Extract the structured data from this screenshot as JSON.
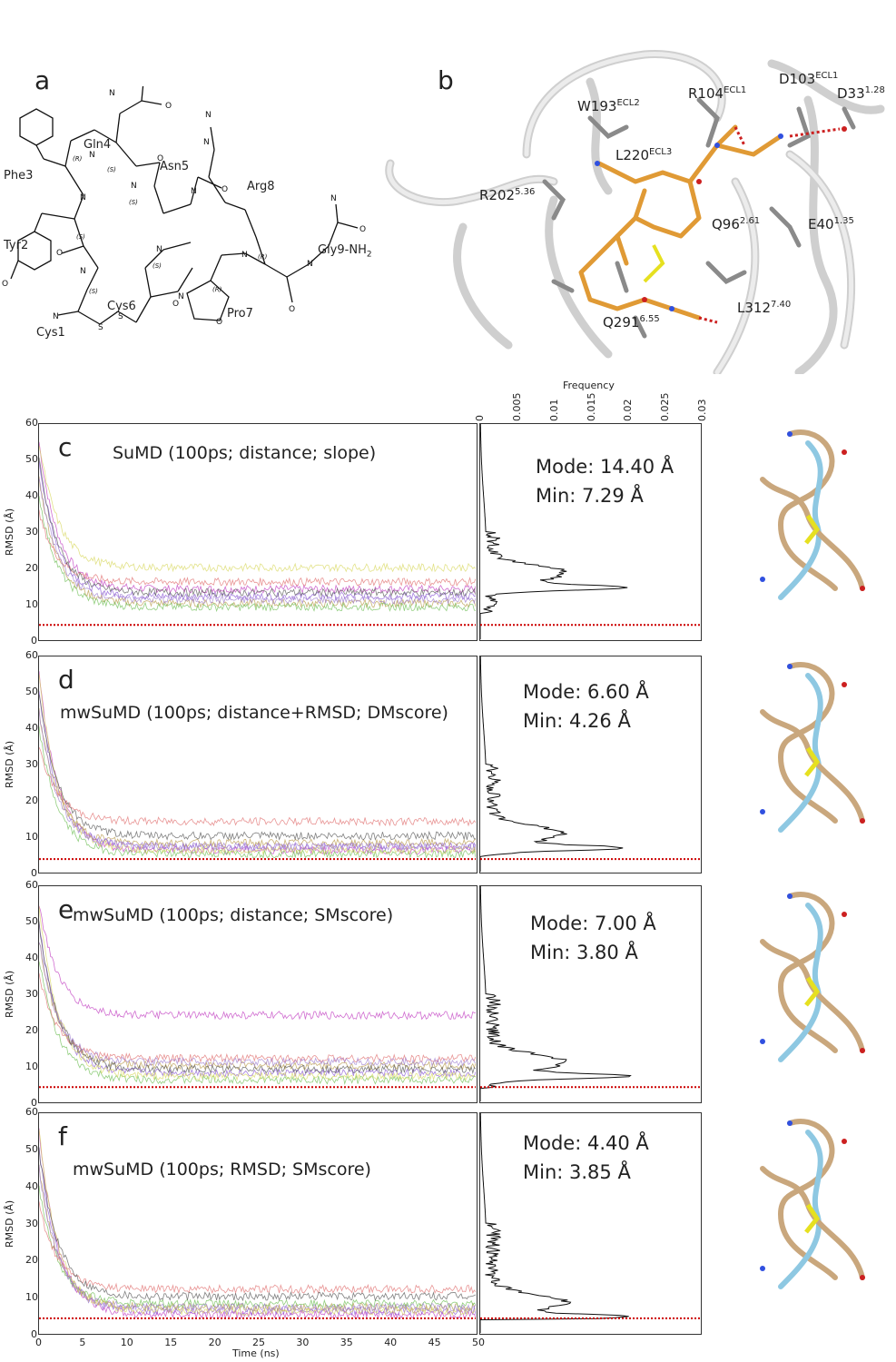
{
  "panel_a": {
    "letter": "a",
    "residues": [
      "Gln4",
      "Asn5",
      "Phe3",
      "Arg8",
      "Tyr2",
      "Gly9-NH",
      "2",
      "Cys6",
      "Cys1",
      "Pro7"
    ],
    "atoms": {
      "N": "N",
      "O": "O"
    },
    "stereo": {
      "S": "(S)",
      "R": "(R)"
    }
  },
  "panel_b": {
    "letter": "b",
    "labels": [
      {
        "name": "R104",
        "sup": "ECL1"
      },
      {
        "name": "D103",
        "sup": "ECL1"
      },
      {
        "name": "D33",
        "sup": "1.28"
      },
      {
        "name": "W193",
        "sup": "ECL2"
      },
      {
        "name": "L220",
        "sup": "ECL3"
      },
      {
        "name": "R202",
        "sup": "5.36"
      },
      {
        "name": "Q96",
        "sup": "2.61"
      },
      {
        "name": "E40",
        "sup": "1.35"
      },
      {
        "name": "L312",
        "sup": "7.40"
      },
      {
        "name": "Q291",
        "sup": "6.55"
      }
    ]
  },
  "axes": {
    "ylabel": "RMSD (Å)",
    "xlabel": "Time (ns)",
    "freq_label": "Frequency",
    "y_ticks": [
      "60",
      "50",
      "40",
      "30",
      "20",
      "10",
      "0"
    ],
    "x_ticks": [
      "0",
      "5",
      "10",
      "15",
      "20",
      "25",
      "30",
      "35",
      "40",
      "45",
      "50"
    ],
    "freq_ticks": [
      "0",
      "0.005",
      "0.01",
      "0.015",
      "0.02",
      "0.025",
      "0.03"
    ]
  },
  "panels": [
    {
      "letter": "c",
      "method": "SuMD (100ps; distance; slope)",
      "mode": "Mode: 14.40 Å",
      "min": "Min: 7.29 Å"
    },
    {
      "letter": "d",
      "method": "mwSuMD (100ps; distance+RMSD; DMscore)",
      "mode": "Mode: 6.60 Å",
      "min": "Min: 4.26 Å"
    },
    {
      "letter": "e",
      "method": "mwSuMD (100ps; distance; SMscore)",
      "mode": "Mode: 7.00 Å",
      "min": "Min: 3.80 Å"
    },
    {
      "letter": "f",
      "method": "mwSuMD (100ps; RMSD; SMscore)",
      "mode": "Mode: 4.40 Å",
      "min": "Min: 3.85 Å"
    }
  ],
  "chart_data": [
    {
      "type": "line",
      "title": "",
      "xlabel": "",
      "ylabel": "RMSD (Å)",
      "xlim": [
        0,
        50
      ],
      "ylim": [
        0,
        60
      ],
      "reference_y": 4,
      "series_summary": {
        "start": [
          55,
          50,
          45,
          40,
          35
        ],
        "plateau": [
          14,
          12,
          10,
          9,
          16,
          20,
          13,
          11
        ]
      },
      "mode": 14.4,
      "min": 7.29
    },
    {
      "type": "line",
      "title": "",
      "xlabel": "",
      "ylabel": "RMSD (Å)",
      "xlim": [
        0,
        50
      ],
      "ylim": [
        0,
        60
      ],
      "reference_y": 3.5,
      "series_summary": {
        "start": [
          55,
          50,
          45,
          40,
          35
        ],
        "plateau": [
          6,
          7,
          8,
          5,
          14,
          6,
          10,
          7
        ]
      },
      "mode": 6.6,
      "min": 4.26
    },
    {
      "type": "line",
      "title": "",
      "xlabel": "",
      "ylabel": "RMSD (Å)",
      "xlim": [
        0,
        50
      ],
      "ylim": [
        0,
        60
      ],
      "reference_y": 4,
      "series_summary": {
        "start": [
          55,
          50,
          45,
          40,
          35
        ],
        "plateau": [
          24,
          8,
          10,
          6,
          12,
          7,
          9,
          11
        ]
      },
      "mode": 7.0,
      "min": 3.8
    },
    {
      "type": "line",
      "title": "",
      "xlabel": "Time (ns)",
      "ylabel": "RMSD (Å)",
      "xlim": [
        0,
        50
      ],
      "ylim": [
        0,
        60
      ],
      "reference_y": 4,
      "series_summary": {
        "start": [
          55,
          50,
          45,
          40,
          35
        ],
        "plateau": [
          5,
          6,
          7,
          8,
          12,
          6,
          10,
          7
        ]
      },
      "mode": 4.4,
      "min": 3.85
    }
  ],
  "colors": {
    "reference_line": "#cc0000",
    "series": [
      "#c03cc0",
      "#8a56d6",
      "#b89a4a",
      "#6fbf55",
      "#e07070",
      "#d8d860",
      "#555555",
      "#9f7fd0"
    ],
    "peptide_tan": "#c9a77d",
    "peptide_blue": "#8ec8e2",
    "ligand_orange": "#e09a35",
    "sidechain_grey": "#8a8a8a",
    "sulfur_yellow": "#e6e020",
    "oxygen_red": "#cc2020",
    "nitrogen_blue": "#3050e0"
  }
}
